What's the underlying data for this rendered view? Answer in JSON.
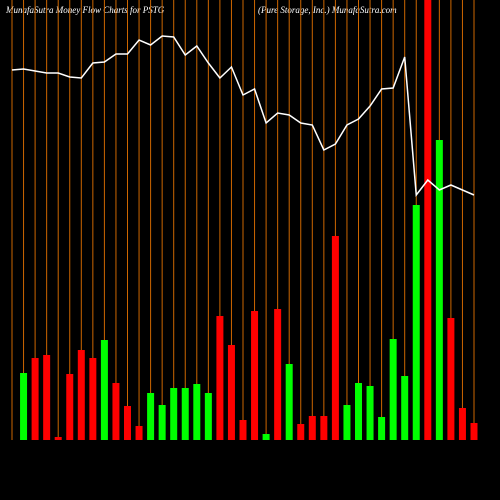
{
  "chart_data": {
    "type": "bar",
    "title": "MunafaSutra  Money Flow  Charts for PSTG",
    "subtitle": "(Pure   Storage,  Inc.)  MunafaSutra.com",
    "categories": [
      null,
      null,
      null,
      null,
      null,
      null,
      null,
      null,
      null,
      null,
      null,
      null,
      null,
      null,
      null,
      null,
      null,
      null,
      null,
      null,
      null,
      null,
      null,
      null,
      null,
      null,
      null,
      null,
      null,
      null,
      null,
      null,
      null,
      null,
      null,
      null,
      null,
      null,
      null,
      null,
      null
    ],
    "values": [
      null,
      67,
      82,
      85,
      3,
      66,
      90,
      82,
      100,
      57,
      34,
      14,
      47,
      35,
      52,
      52,
      56,
      47,
      124,
      95,
      20,
      129,
      6,
      131,
      76,
      16,
      24,
      24,
      204,
      35,
      57,
      54,
      23,
      101,
      64,
      235,
      440,
      300,
      122,
      32,
      17
    ],
    "colors": [
      null,
      "#00ff00",
      "#ff0000",
      "#ff0000",
      "#ff0000",
      "#ff0000",
      "#ff0000",
      "#ff0000",
      "#00ff00",
      "#ff0000",
      "#ff0000",
      "#ff0000",
      "#00ff00",
      "#00ff00",
      "#00ff00",
      "#00ff00",
      "#00ff00",
      "#00ff00",
      "#ff0000",
      "#ff0000",
      "#ff0000",
      "#ff0000",
      "#00ff00",
      "#ff0000",
      "#00ff00",
      "#ff0000",
      "#ff0000",
      "#ff0000",
      "#ff0000",
      "#00ff00",
      "#00ff00",
      "#00ff00",
      "#00ff00",
      "#00ff00",
      "#00ff00",
      "#00ff00",
      "#ff0000",
      "#00ff00",
      "#ff0000",
      "#ff0000",
      "#ff0000"
    ],
    "line_values": [
      370,
      371,
      369,
      367,
      367,
      363,
      362,
      377,
      378,
      386,
      386,
      400,
      395,
      404,
      403,
      385,
      394,
      377,
      362,
      373,
      345,
      351,
      317,
      327,
      325,
      317,
      315,
      290,
      296,
      315,
      321,
      334,
      351,
      352,
      383,
      245,
      260,
      250,
      255,
      250,
      245
    ],
    "line_color": "#ffffff",
    "grid_color": "#cc6600",
    "ylim": [
      0,
      440
    ]
  }
}
